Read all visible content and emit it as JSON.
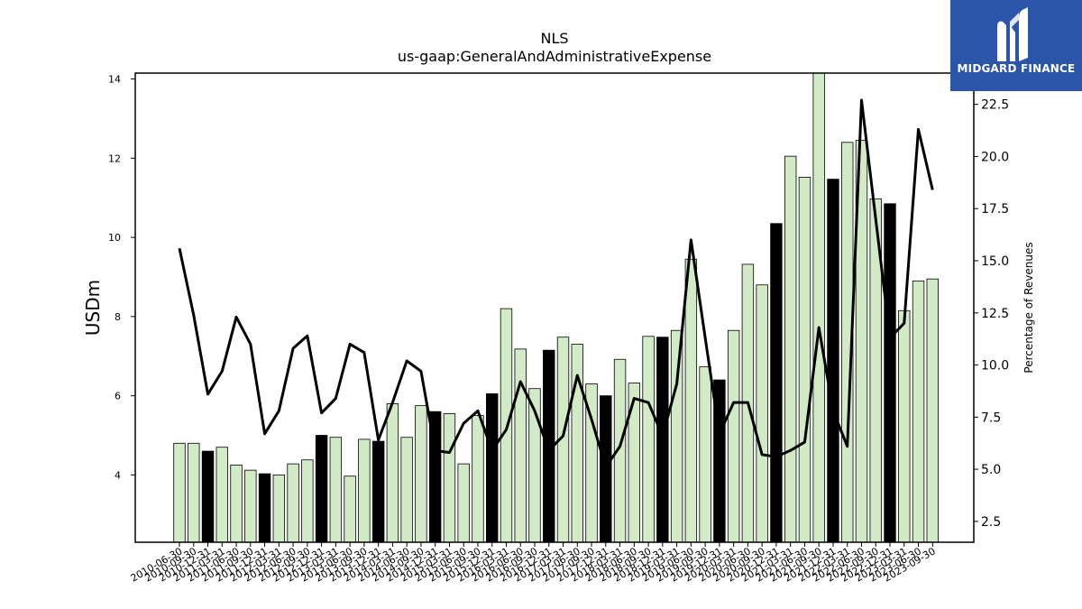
{
  "chart_data": {
    "type": "bar",
    "title": "NLS",
    "subtitle": "us-gaap:GeneralAndAdministrativeExpense",
    "ylabel": "USDm",
    "y2label": "Percentage of Revenues",
    "ylim": [
      2.3,
      14.15
    ],
    "y2lim": [
      1.5,
      24.0
    ],
    "yticks": [
      4,
      6,
      8,
      10,
      12,
      14
    ],
    "y2ticks": [
      2.5,
      5.0,
      7.5,
      10.0,
      12.5,
      15.0,
      17.5,
      20.0,
      22.5
    ],
    "categories": [
      "2010-06-30",
      "2010-09-30",
      "2010-12-31",
      "2011-03-31",
      "2011-06-30",
      "2011-09-30",
      "2011-12-31",
      "2012-03-31",
      "2012-06-30",
      "2012-09-30",
      "2012-12-31",
      "2013-03-31",
      "2013-06-30",
      "2013-09-30",
      "2013-12-31",
      "2014-03-31",
      "2014-06-30",
      "2014-09-30",
      "2014-12-31",
      "2015-03-31",
      "2015-06-30",
      "2015-09-30",
      "2015-12-31",
      "2016-03-31",
      "2016-06-30",
      "2016-09-30",
      "2016-12-31",
      "2017-03-31",
      "2017-06-30",
      "2017-09-30",
      "2017-12-31",
      "2018-03-31",
      "2018-06-30",
      "2018-09-30",
      "2018-12-31",
      "2019-03-31",
      "2019-06-30",
      "2019-09-30",
      "2019-12-31",
      "2020-03-31",
      "2020-06-30",
      "2020-09-30",
      "2020-12-31",
      "2021-03-31",
      "2021-06-30",
      "2021-09-30",
      "2021-12-31",
      "2022-03-31",
      "2022-06-30",
      "2022-09-30",
      "2022-12-31",
      "2023-03-31",
      "2023-06-30",
      "2023-09-30"
    ],
    "series": [
      {
        "kind": "bar",
        "axis": "left",
        "values": [
          4.8,
          4.8,
          4.6,
          4.7,
          4.25,
          4.12,
          4.03,
          4.0,
          4.28,
          4.38,
          5.0,
          4.95,
          3.97,
          4.9,
          4.85,
          5.8,
          4.95,
          5.75,
          5.6,
          5.55,
          4.28,
          5.5,
          6.05,
          8.2,
          7.18,
          6.18,
          7.15,
          7.48,
          7.3,
          6.3,
          6.0,
          6.92,
          6.32,
          7.5,
          7.48,
          7.65,
          9.45,
          6.73,
          6.4,
          7.65,
          9.32,
          8.8,
          10.35,
          12.05,
          11.52,
          14.2,
          11.47,
          12.4,
          12.45,
          10.97,
          10.85,
          8.15,
          8.9,
          8.95
        ],
        "q4_indices": [
          2,
          6,
          10,
          14,
          18,
          22,
          26,
          30,
          34,
          38,
          42,
          46,
          50
        ],
        "colors": {
          "normal": "#d0ebc6",
          "q4": "#000000"
        }
      },
      {
        "kind": "line",
        "axis": "right",
        "color": "#000000",
        "values": [
          15.6,
          12.4,
          8.6,
          9.7,
          12.3,
          11.0,
          6.7,
          7.8,
          10.8,
          11.4,
          7.7,
          8.4,
          11.0,
          10.6,
          6.4,
          8.2,
          10.2,
          9.7,
          5.9,
          5.8,
          7.2,
          7.8,
          5.9,
          6.9,
          9.2,
          7.8,
          5.9,
          6.6,
          9.5,
          7.4,
          5.1,
          6.1,
          8.4,
          8.2,
          6.6,
          9.1,
          16.0,
          11.3,
          6.7,
          8.2,
          8.2,
          5.7,
          5.6,
          5.9,
          6.3,
          11.8,
          7.8,
          6.1,
          22.7,
          17.0,
          11.3,
          12.0,
          21.3,
          18.4
        ]
      }
    ]
  },
  "logo": {
    "text": "MIDGARD FINANCE",
    "icon": "midgard-m-logo-icon"
  }
}
